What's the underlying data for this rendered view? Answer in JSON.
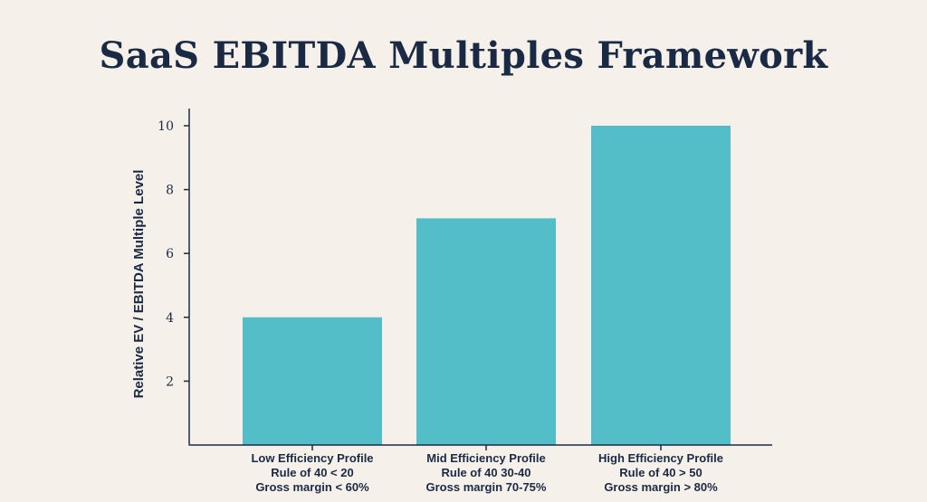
{
  "chart_data": {
    "type": "bar",
    "title": "SaaS EBITDA Multiples Framework",
    "xlabel": "",
    "ylabel": "Relative EV / EBITDA Multiple Level",
    "ylim": [
      0,
      10
    ],
    "yticks": [
      2,
      4,
      6,
      8,
      10
    ],
    "categories": [
      [
        "Low Efficiency Profile",
        "Rule of 40 < 20",
        "Gross margin < 60%"
      ],
      [
        "Mid Efficiency Profile",
        "Rule of 40 30-40",
        "Gross margin 70-75%"
      ],
      [
        "High Efficiency Profile",
        "Rule of 40 > 50",
        "Gross margin > 80%"
      ]
    ],
    "values": [
      4,
      7.1,
      10
    ],
    "grid": false,
    "colors": {
      "bar": "#54bec8",
      "axis": "#1b2a44",
      "text": "#1b2a44",
      "background": "#f5f0ea"
    }
  }
}
